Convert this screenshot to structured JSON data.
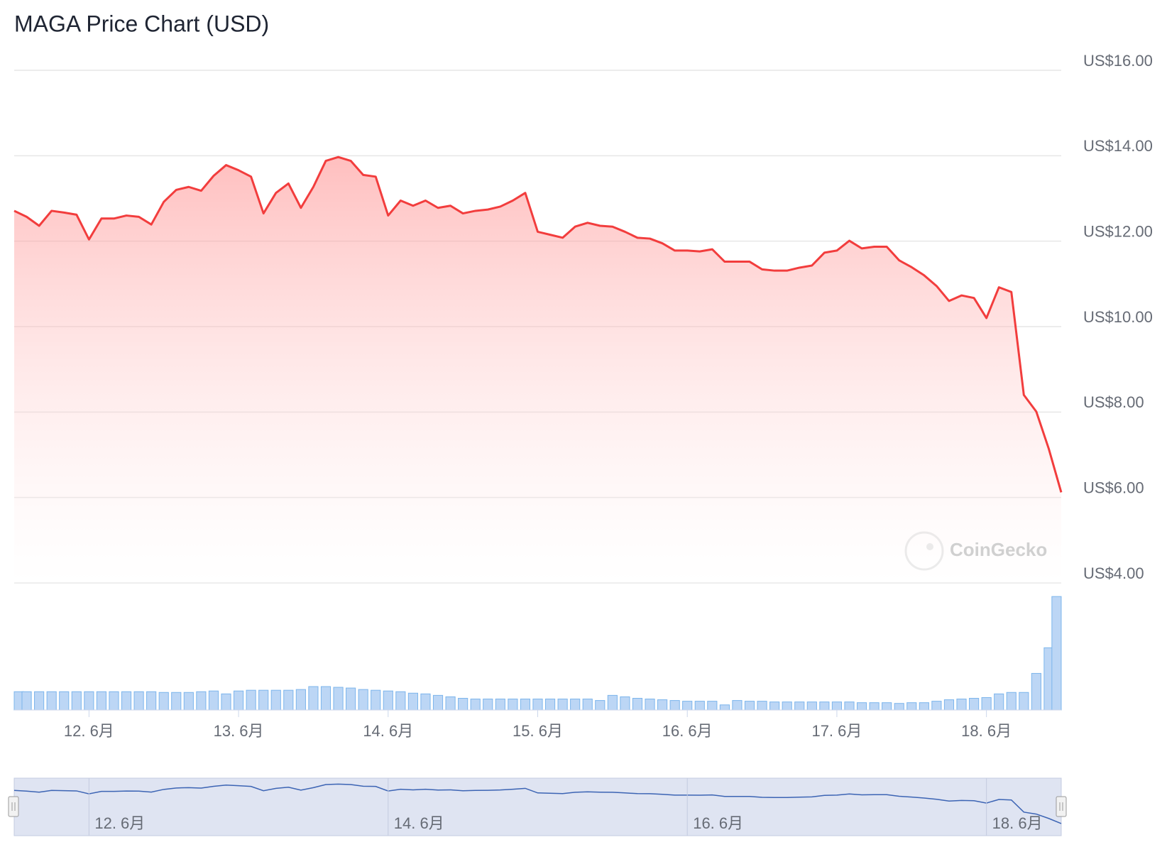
{
  "chart_data": {
    "type": "line",
    "title": "MAGA Price Chart (USD)",
    "watermark": "CoinGecko",
    "categories": [
      null,
      null,
      null,
      null,
      null,
      null,
      "12. 6月",
      null,
      null,
      null,
      null,
      null,
      null,
      null,
      null,
      null,
      null,
      null,
      "13. 6月",
      null,
      null,
      null,
      null,
      null,
      null,
      null,
      null,
      null,
      null,
      null,
      "14. 6月",
      null,
      null,
      null,
      null,
      null,
      null,
      null,
      null,
      null,
      null,
      null,
      "15. 6月",
      null,
      null,
      null,
      null,
      null,
      null,
      null,
      null,
      null,
      null,
      null,
      "16. 6月",
      null,
      null,
      null,
      null,
      null,
      null,
      null,
      null,
      null,
      null,
      null,
      "17. 6月",
      null,
      null,
      null,
      null,
      null,
      null,
      null,
      null,
      null,
      null,
      null,
      "18. 6月",
      null,
      null,
      null,
      null,
      null,
      null
    ],
    "series": [
      {
        "color": "#f23d3d",
        "values": [
          12.71,
          12.57,
          12.36,
          12.71,
          12.67,
          12.62,
          12.04,
          12.53,
          12.53,
          12.6,
          12.57,
          12.39,
          12.92,
          13.2,
          13.27,
          13.18,
          13.53,
          13.78,
          13.66,
          13.51,
          12.65,
          13.13,
          13.35,
          12.78,
          13.27,
          13.88,
          13.97,
          13.88,
          13.55,
          13.51,
          12.6,
          12.95,
          12.83,
          12.95,
          12.78,
          12.83,
          12.65,
          12.71,
          12.74,
          12.81,
          12.95,
          13.13,
          12.22,
          12.15,
          12.08,
          12.34,
          12.43,
          12.36,
          12.34,
          12.22,
          12.08,
          12.06,
          11.95,
          11.78,
          11.78,
          11.76,
          11.81,
          11.52,
          11.52,
          11.52,
          11.34,
          11.31,
          11.31,
          11.38,
          11.43,
          11.73,
          11.78,
          12.01,
          11.83,
          11.87,
          11.87,
          11.55,
          11.39,
          11.2,
          10.95,
          10.6,
          10.73,
          10.67,
          10.2,
          10.92,
          10.81,
          8.4,
          8.01,
          7.14,
          6.12
        ]
      },
      {
        "color": "#7cb5ec",
        "type": "bar",
        "axis": "y2",
        "values": [
          25,
          25,
          25,
          25,
          25,
          25,
          25,
          25,
          25,
          25,
          25,
          25,
          24,
          24,
          24,
          25,
          26,
          22,
          26,
          27,
          27,
          27,
          27,
          28,
          32,
          32,
          31,
          30,
          28,
          27,
          26,
          25,
          23,
          22,
          20,
          18,
          16,
          15,
          15,
          15,
          15,
          15,
          15,
          15,
          15,
          15,
          15,
          13,
          20,
          18,
          16,
          15,
          14,
          13,
          12,
          12,
          12,
          7,
          13,
          12,
          12,
          11,
          11,
          11,
          11,
          11,
          11,
          11,
          10,
          10,
          10,
          9,
          10,
          10,
          12,
          14,
          15,
          16,
          17,
          22,
          24,
          24,
          50,
          85,
          155
        ]
      }
    ],
    "ylim": [
      4,
      16
    ],
    "yticks": [
      {
        "value": 4,
        "label": "US$4.00"
      },
      {
        "value": 6,
        "label": "US$6.00"
      },
      {
        "value": 8,
        "label": "US$8.00"
      },
      {
        "value": 10,
        "label": "US$10.00"
      },
      {
        "value": 12,
        "label": "US$12.00"
      },
      {
        "value": 14,
        "label": "US$14.00"
      },
      {
        "value": 16,
        "label": "US$16.00"
      }
    ],
    "y2lim": [
      0,
      160
    ],
    "grid": true
  }
}
